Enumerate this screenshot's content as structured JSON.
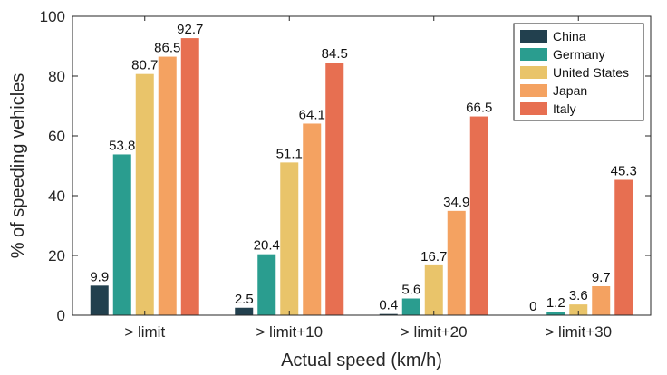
{
  "chart_data": {
    "type": "bar",
    "title": "",
    "xlabel": "Actual speed (km/h)",
    "ylabel": "% of speeding vehicles",
    "categories": [
      "> limit",
      "> limit+10",
      "> limit+20",
      "> limit+30"
    ],
    "ylim": [
      0,
      100
    ],
    "yticks": [
      "0",
      "20",
      "40",
      "60",
      "80",
      "100"
    ],
    "grid": false,
    "legend_position": "top-right",
    "series": [
      {
        "name": "China",
        "color": "#22404e",
        "values": [
          9.9,
          2.5,
          0.4,
          0
        ],
        "labels": [
          "9.9",
          "2.5",
          "0.4",
          "0"
        ]
      },
      {
        "name": "Germany",
        "color": "#2a9d8f",
        "values": [
          53.8,
          20.4,
          5.6,
          1.2
        ],
        "labels": [
          "53.8",
          "20.4",
          "5.6",
          "1.2"
        ]
      },
      {
        "name": "United States",
        "color": "#e9c46a",
        "values": [
          80.7,
          51.1,
          16.7,
          3.6
        ],
        "labels": [
          "80.7",
          "51.1",
          "16.7",
          "3.6"
        ]
      },
      {
        "name": "Japan",
        "color": "#f4a261",
        "values": [
          86.5,
          64.1,
          34.9,
          9.7
        ],
        "labels": [
          "86.5",
          "64.1",
          "34.9",
          "9.7"
        ]
      },
      {
        "name": "Italy",
        "color": "#e76f51",
        "values": [
          92.7,
          84.5,
          66.5,
          45.3
        ],
        "labels": [
          "92.7",
          "84.5",
          "66.5",
          "45.3"
        ]
      }
    ]
  }
}
